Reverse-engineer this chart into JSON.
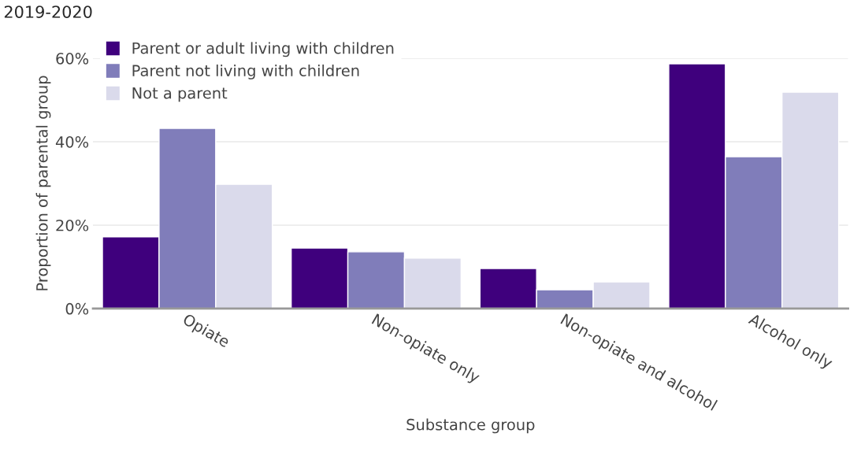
{
  "chart_data": {
    "type": "bar",
    "title": "2019-2020",
    "xlabel": "Substance group",
    "ylabel": "Proportion of parental group",
    "categories": [
      "Opiate",
      "Non-opiate only",
      "Non-opiate and alcohol",
      "Alcohol only"
    ],
    "series": [
      {
        "name": "Parent or adult living with children",
        "color": "#3f007d",
        "values": [
          17.2,
          14.5,
          9.6,
          58.7
        ]
      },
      {
        "name": "Parent not living with children",
        "color": "#807dba",
        "values": [
          43.2,
          13.6,
          4.5,
          36.4
        ]
      },
      {
        "name": "Not a parent",
        "color": "#dadaeb",
        "values": [
          29.8,
          12.1,
          6.4,
          51.9
        ]
      }
    ],
    "ylim": [
      0,
      60
    ],
    "yticks": [
      {
        "value": 0,
        "label": "0%"
      },
      {
        "value": 20,
        "label": "20%"
      },
      {
        "value": 40,
        "label": "40%"
      },
      {
        "value": 60,
        "label": "60%"
      }
    ],
    "grid": "y",
    "legend": "top left"
  }
}
